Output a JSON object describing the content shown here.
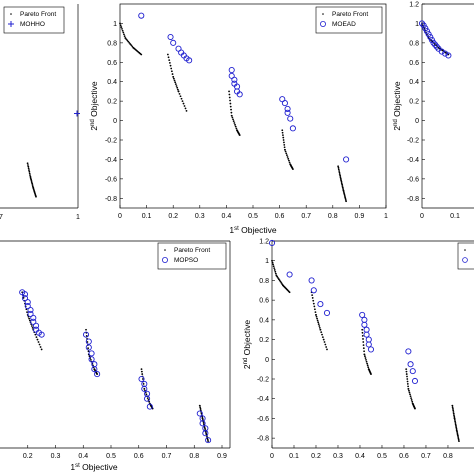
{
  "chart_data": [
    {
      "type": "scatter",
      "panel": "top-left",
      "legend": [
        "Pareto Front",
        "MOHHO"
      ],
      "legend_placement": "top-right",
      "xticks_visible": [
        "1"
      ],
      "xticks_partial": [
        "7"
      ],
      "xlabel": "",
      "ylabel": "",
      "series": [
        {
          "name": "Pareto Front",
          "x": [
            0.82,
            0.83,
            0.84,
            0.85
          ],
          "y": [
            -0.45,
            -0.6,
            -0.72,
            -0.82
          ]
        },
        {
          "name": "MOHHO",
          "x": [
            1.0
          ],
          "y": [
            0.1
          ]
        }
      ]
    },
    {
      "type": "scatter",
      "panel": "top-middle",
      "legend": [
        "Pareto Front",
        "MOEAD"
      ],
      "legend_placement": "top-right",
      "xlim": [
        0,
        1
      ],
      "ylim": [
        -0.9,
        1.2
      ],
      "xticks": [
        "0",
        "0.1",
        "0.2",
        "0.3",
        "0.4",
        "0.5",
        "0.6",
        "0.7",
        "0.8",
        "0.9",
        "1"
      ],
      "yticks": [
        "-0.8",
        "-0.6",
        "-0.4",
        "-0.2",
        "0",
        "0.2",
        "0.4",
        "0.6",
        "0.8",
        "1"
      ],
      "xlabel": "1st Objective",
      "ylabel": "2nd Objective",
      "series": [
        {
          "name": "Pareto Front",
          "segments": [
            {
              "x": [
                0.0,
                0.02,
                0.05,
                0.08
              ],
              "y": [
                1.0,
                0.85,
                0.75,
                0.68
              ]
            },
            {
              "x": [
                0.18,
                0.2,
                0.22,
                0.25
              ],
              "y": [
                0.68,
                0.45,
                0.3,
                0.1
              ]
            },
            {
              "x": [
                0.41,
                0.42,
                0.44,
                0.45
              ],
              "y": [
                0.3,
                0.05,
                -0.1,
                -0.15
              ]
            },
            {
              "x": [
                0.61,
                0.62,
                0.64,
                0.65
              ],
              "y": [
                -0.1,
                -0.3,
                -0.45,
                -0.5
              ]
            },
            {
              "x": [
                0.82,
                0.83,
                0.84,
                0.85
              ],
              "y": [
                -0.47,
                -0.6,
                -0.72,
                -0.83
              ]
            }
          ]
        },
        {
          "name": "MOEAD",
          "x": [
            0.08,
            0.19,
            0.2,
            0.22,
            0.23,
            0.24,
            0.25,
            0.26,
            0.42,
            0.42,
            0.43,
            0.43,
            0.44,
            0.44,
            0.45,
            0.61,
            0.62,
            0.63,
            0.63,
            0.64,
            0.65,
            0.85
          ],
          "y": [
            1.08,
            0.86,
            0.8,
            0.74,
            0.7,
            0.67,
            0.64,
            0.62,
            0.52,
            0.46,
            0.42,
            0.38,
            0.35,
            0.3,
            0.27,
            0.22,
            0.18,
            0.12,
            0.08,
            0.02,
            -0.08,
            -0.4
          ]
        }
      ]
    },
    {
      "type": "scatter",
      "panel": "top-right",
      "yticks": [
        "-0.8",
        "-0.6",
        "-0.4",
        "-0.2",
        "0",
        "0.2",
        "0.4",
        "0.6",
        "0.8",
        "1",
        "1.2"
      ],
      "xticks": [
        "0",
        "0.1"
      ],
      "xlabel": "",
      "ylabel": "2nd Objective",
      "series": [
        {
          "name": "Pareto Front",
          "x": [
            0.0,
            0.02,
            0.05,
            0.08
          ],
          "y": [
            1.0,
            0.85,
            0.75,
            0.68
          ]
        },
        {
          "name": "",
          "x": [
            0.0,
            0.005,
            0.01,
            0.015,
            0.02,
            0.025,
            0.03,
            0.035,
            0.04,
            0.045,
            0.05,
            0.06,
            0.07,
            0.08
          ],
          "y": [
            1.0,
            0.98,
            0.95,
            0.92,
            0.89,
            0.86,
            0.83,
            0.8,
            0.78,
            0.76,
            0.74,
            0.71,
            0.69,
            0.67
          ]
        }
      ]
    },
    {
      "type": "scatter",
      "panel": "bottom-left",
      "legend": [
        "Pareto Front",
        "MOPSO"
      ],
      "legend_placement": "top-right",
      "xlim": [
        0.1,
        0.9
      ],
      "xticks": [
        "0.2",
        "0.3",
        "0.4",
        "0.5",
        "0.6",
        "0.7",
        "0.8",
        "0.9"
      ],
      "xlabel": "1st Objective",
      "ylabel": "",
      "series": [
        {
          "name": "Pareto Front",
          "segments": [
            {
              "x": [
                0.18,
                0.2,
                0.22,
                0.25
              ],
              "y": [
                0.68,
                0.45,
                0.3,
                0.1
              ]
            },
            {
              "x": [
                0.41,
                0.42,
                0.44,
                0.45
              ],
              "y": [
                0.3,
                0.05,
                -0.1,
                -0.15
              ]
            },
            {
              "x": [
                0.61,
                0.62,
                0.64,
                0.65
              ],
              "y": [
                -0.1,
                -0.3,
                -0.45,
                -0.5
              ]
            },
            {
              "x": [
                0.82,
                0.83,
                0.84,
                0.85
              ],
              "y": [
                -0.47,
                -0.6,
                -0.72,
                -0.83
              ]
            }
          ]
        },
        {
          "name": "MOPSO",
          "x": [
            0.18,
            0.19,
            0.19,
            0.2,
            0.2,
            0.21,
            0.21,
            0.22,
            0.22,
            0.23,
            0.23,
            0.24,
            0.25,
            0.41,
            0.42,
            0.42,
            0.43,
            0.43,
            0.44,
            0.44,
            0.45,
            0.61,
            0.62,
            0.62,
            0.63,
            0.63,
            0.64,
            0.82,
            0.83,
            0.83,
            0.84,
            0.84,
            0.85
          ],
          "y": [
            0.68,
            0.66,
            0.62,
            0.58,
            0.54,
            0.5,
            0.46,
            0.42,
            0.38,
            0.34,
            0.3,
            0.27,
            0.25,
            0.25,
            0.18,
            0.12,
            0.06,
            0.0,
            -0.05,
            -0.1,
            -0.15,
            -0.2,
            -0.25,
            -0.3,
            -0.35,
            -0.4,
            -0.48,
            -0.55,
            -0.6,
            -0.65,
            -0.7,
            -0.75,
            -0.82
          ]
        }
      ]
    },
    {
      "type": "scatter",
      "panel": "bottom-right",
      "xlim": [
        0,
        0.9
      ],
      "ylim": [
        -0.9,
        1.2
      ],
      "xticks": [
        "0",
        "0.1",
        "0.2",
        "0.3",
        "0.4",
        "0.5",
        "0.6",
        "0.7",
        "0.8"
      ],
      "yticks": [
        "-0.8",
        "-0.6",
        "-0.4",
        "-0.2",
        "0",
        "0.2",
        "0.4",
        "0.6",
        "0.8",
        "1",
        "1.2"
      ],
      "xlabel": "",
      "ylabel": "2nd Objective",
      "series": [
        {
          "name": "Pareto Front",
          "segments": [
            {
              "x": [
                0.0,
                0.02,
                0.05,
                0.08
              ],
              "y": [
                1.0,
                0.85,
                0.75,
                0.68
              ]
            },
            {
              "x": [
                0.18,
                0.2,
                0.22,
                0.25
              ],
              "y": [
                0.68,
                0.45,
                0.3,
                0.1
              ]
            },
            {
              "x": [
                0.41,
                0.42,
                0.44,
                0.45
              ],
              "y": [
                0.3,
                0.05,
                -0.1,
                -0.15
              ]
            },
            {
              "x": [
                0.61,
                0.62,
                0.64,
                0.65
              ],
              "y": [
                -0.1,
                -0.3,
                -0.45,
                -0.5
              ]
            },
            {
              "x": [
                0.82,
                0.83,
                0.84,
                0.85
              ],
              "y": [
                -0.47,
                -0.6,
                -0.72,
                -0.83
              ]
            }
          ]
        },
        {
          "name": "",
          "x": [
            0.0,
            0.08,
            0.18,
            0.19,
            0.22,
            0.25,
            0.41,
            0.42,
            0.42,
            0.43,
            0.43,
            0.44,
            0.44,
            0.45,
            0.62,
            0.63,
            0.64,
            0.65
          ],
          "y": [
            1.18,
            0.86,
            0.8,
            0.7,
            0.56,
            0.47,
            0.45,
            0.4,
            0.35,
            0.3,
            0.25,
            0.2,
            0.15,
            0.1,
            0.08,
            -0.05,
            -0.12,
            -0.22
          ]
        }
      ]
    }
  ]
}
